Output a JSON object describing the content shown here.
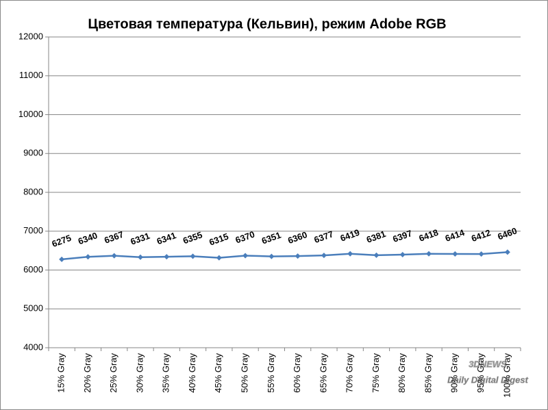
{
  "chart_data": {
    "type": "line",
    "title": "Цветовая температура (Кельвин), режим Adobe RGB",
    "categories": [
      "15% Gray",
      "20% Gray",
      "25% Gray",
      "30% Gray",
      "35% Gray",
      "40% Gray",
      "45% Gray",
      "50% Gray",
      "55% Gray",
      "60% Gray",
      "65% Gray",
      "70% Gray",
      "75% Gray",
      "80% Gray",
      "85% Gray",
      "90% Gray",
      "95% Gray",
      "100% Gray"
    ],
    "series": [
      {
        "color": "#4a7ebb",
        "values": [
          6275,
          6340,
          6367,
          6331,
          6341,
          6355,
          6315,
          6370,
          6351,
          6360,
          6377,
          6419,
          6381,
          6397,
          6418,
          6414,
          6412,
          6460
        ]
      }
    ],
    "ylim": [
      4000,
      12000
    ],
    "yticks": [
      4000,
      5000,
      6000,
      7000,
      8000,
      9000,
      10000,
      11000,
      12000
    ],
    "grid": true
  },
  "watermark": {
    "logo": "3DNEWS",
    "tagline": "Daily Digital Digest"
  }
}
